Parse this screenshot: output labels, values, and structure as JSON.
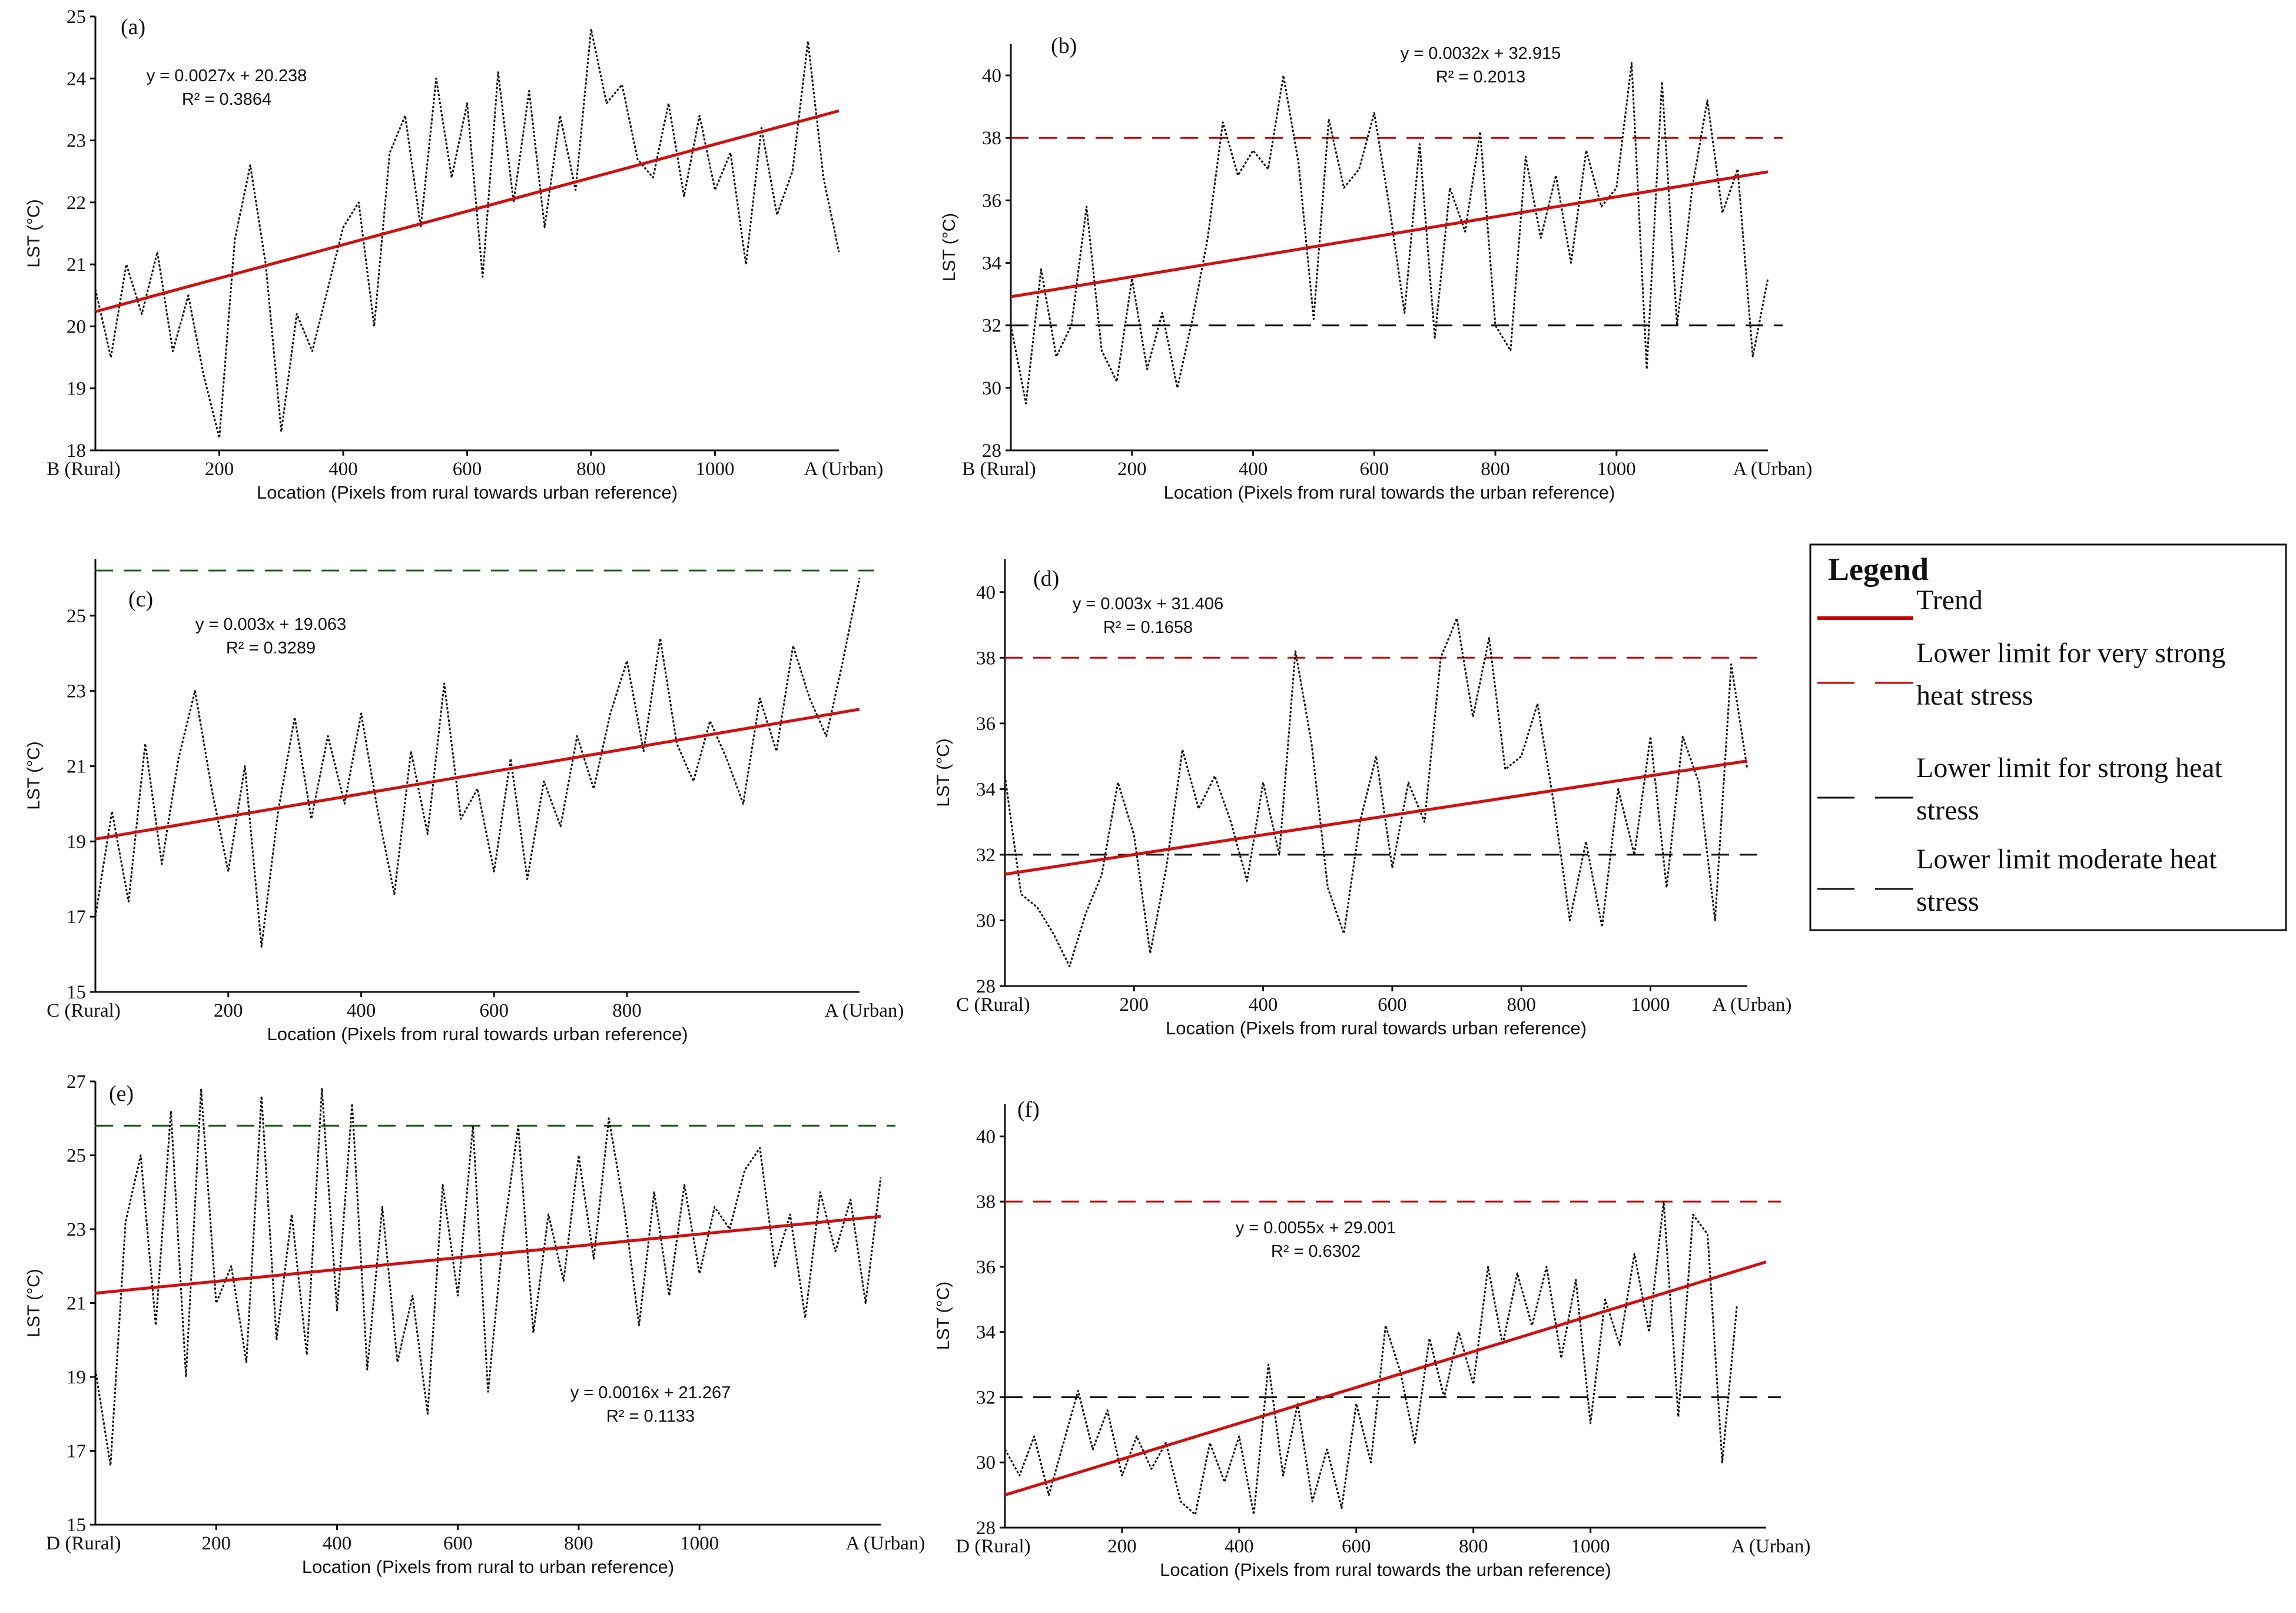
{
  "chart_data": [
    {
      "type": "line",
      "panel_label": "(a)",
      "ylabel": "LST (°C)",
      "xlabel": "Location (Pixels from rural towards urban reference)",
      "x_start_label": "B (Rural)",
      "x_end_label": "A (Urban)",
      "xlim": [
        0,
        1200
      ],
      "ylim": [
        18,
        25
      ],
      "yticks": [
        18,
        19,
        20,
        21,
        22,
        23,
        24,
        25
      ],
      "xticks": [
        200,
        400,
        600,
        800,
        1000
      ],
      "equation": "y = 0.0027x + 20.238",
      "r2": "R² = 0.3864",
      "trend": {
        "slope": 0.0027,
        "intercept": 20.238
      },
      "thresholds": [],
      "series": [
        {
          "name": "LST",
          "x": [
            0,
            25,
            50,
            75,
            100,
            125,
            150,
            175,
            200,
            225,
            250,
            275,
            300,
            325,
            350,
            375,
            400,
            425,
            450,
            475,
            500,
            525,
            550,
            575,
            600,
            625,
            650,
            675,
            700,
            725,
            750,
            775,
            800,
            825,
            850,
            875,
            900,
            925,
            950,
            975,
            1000,
            1025,
            1050,
            1075,
            1100,
            1125,
            1150,
            1175,
            1200
          ],
          "values": [
            20.6,
            19.5,
            21.0,
            20.2,
            21.2,
            19.6,
            20.5,
            19.2,
            18.2,
            21.4,
            22.6,
            21.0,
            18.3,
            20.2,
            19.6,
            20.6,
            21.6,
            22.0,
            20.0,
            22.8,
            23.4,
            21.6,
            24.0,
            22.4,
            23.6,
            20.8,
            24.1,
            22.0,
            23.8,
            21.6,
            23.4,
            22.2,
            24.8,
            23.6,
            23.9,
            22.7,
            22.4,
            23.6,
            22.1,
            23.4,
            22.2,
            22.8,
            21.0,
            23.2,
            21.8,
            22.5,
            24.6,
            22.4,
            21.2
          ]
        }
      ]
    },
    {
      "type": "line",
      "panel_label": "(b)",
      "ylabel": "LST (°C)",
      "xlabel": "Location (Pixels from rural  towards the urban reference)",
      "x_start_label": "B (Rural)",
      "x_end_label": "A (Urban)",
      "xlim": [
        0,
        1250
      ],
      "ylim": [
        28,
        41
      ],
      "yticks": [
        28,
        30,
        32,
        34,
        36,
        38,
        40
      ],
      "xticks": [
        200,
        400,
        600,
        800,
        1000
      ],
      "equation": "y = 0.0032x + 32.915",
      "r2": "R² = 0.2013",
      "trend": {
        "slope": 0.0032,
        "intercept": 32.915
      },
      "thresholds": [
        {
          "value": 38,
          "color": "#c00000",
          "kind": "very-strong"
        },
        {
          "value": 32,
          "color": "#111111",
          "kind": "strong"
        }
      ],
      "series": [
        {
          "name": "LST",
          "x": [
            0,
            25,
            50,
            75,
            100,
            125,
            150,
            175,
            200,
            225,
            250,
            275,
            300,
            325,
            350,
            375,
            400,
            425,
            450,
            475,
            500,
            525,
            550,
            575,
            600,
            625,
            650,
            675,
            700,
            725,
            750,
            775,
            800,
            825,
            850,
            875,
            900,
            925,
            950,
            975,
            1000,
            1025,
            1050,
            1075,
            1100,
            1125,
            1150,
            1175,
            1200,
            1225,
            1250
          ],
          "values": [
            32.0,
            29.5,
            33.8,
            31.0,
            32.0,
            35.8,
            31.2,
            30.2,
            33.5,
            30.6,
            32.4,
            30.0,
            32.2,
            34.8,
            38.5,
            36.8,
            37.6,
            37.0,
            40.0,
            37.2,
            32.2,
            38.6,
            36.4,
            37.0,
            38.8,
            35.8,
            32.4,
            37.8,
            31.6,
            36.4,
            35.0,
            38.2,
            32.0,
            31.2,
            37.4,
            34.8,
            36.8,
            34.0,
            37.6,
            35.8,
            36.4,
            40.4,
            30.6,
            39.8,
            32.0,
            36.4,
            39.2,
            35.6,
            37.0,
            31.0,
            33.5
          ]
        }
      ]
    },
    {
      "type": "line",
      "panel_label": "(c)",
      "ylabel": "LST (°C)",
      "xlabel": "Location (Pixels from rural towards urban reference)",
      "x_start_label": "C (Rural)",
      "x_end_label": "A (Urban)",
      "xlim": [
        0,
        1150
      ],
      "ylim": [
        15,
        26.5
      ],
      "yticks": [
        15,
        17,
        19,
        21,
        23,
        25
      ],
      "xticks": [
        200,
        400,
        600,
        800
      ],
      "equation": "y = 0.003x + 19.063",
      "r2": "R² = 0.3289",
      "trend": {
        "slope": 0.003,
        "intercept": 19.063
      },
      "thresholds": [
        {
          "value": 26.2,
          "color": "#1e5c1e",
          "kind": "moderate"
        }
      ],
      "series": [
        {
          "name": "LST",
          "x": [
            0,
            25,
            50,
            75,
            100,
            125,
            150,
            175,
            200,
            225,
            250,
            275,
            300,
            325,
            350,
            375,
            400,
            425,
            450,
            475,
            500,
            525,
            550,
            575,
            600,
            625,
            650,
            675,
            700,
            725,
            750,
            775,
            800,
            825,
            850,
            875,
            900,
            925,
            950,
            975,
            1000,
            1025,
            1050,
            1075,
            1100,
            1125,
            1150
          ],
          "values": [
            17.0,
            19.8,
            17.4,
            21.6,
            18.4,
            21.2,
            23.0,
            20.4,
            18.2,
            21.0,
            16.2,
            19.8,
            22.3,
            19.6,
            21.8,
            20.0,
            22.4,
            19.8,
            17.6,
            21.4,
            19.2,
            23.2,
            19.6,
            20.4,
            18.2,
            21.2,
            18.0,
            20.6,
            19.4,
            21.8,
            20.4,
            22.4,
            23.8,
            21.4,
            24.4,
            21.6,
            20.6,
            22.2,
            21.2,
            20.0,
            22.8,
            21.4,
            24.2,
            22.8,
            21.8,
            23.8,
            26.0
          ]
        }
      ]
    },
    {
      "type": "line",
      "panel_label": "(d)",
      "ylabel": "LST (°C)",
      "xlabel": "Location (Pixels from rural towards urban reference)",
      "x_start_label": "C (Rural)",
      "x_end_label": "A (Urban)",
      "xlim": [
        0,
        1150
      ],
      "ylim": [
        28,
        41
      ],
      "yticks": [
        28,
        30,
        32,
        34,
        36,
        38,
        40
      ],
      "xticks": [
        200,
        400,
        600,
        800,
        1000
      ],
      "equation": "y = 0.003x + 31.406",
      "r2": "R² = 0.1658",
      "trend": {
        "slope": 0.003,
        "intercept": 31.406
      },
      "thresholds": [
        {
          "value": 38,
          "color": "#c00000",
          "kind": "very-strong"
        },
        {
          "value": 32,
          "color": "#111111",
          "kind": "strong"
        }
      ],
      "series": [
        {
          "name": "LST",
          "x": [
            0,
            25,
            50,
            75,
            100,
            125,
            150,
            175,
            200,
            225,
            250,
            275,
            300,
            325,
            350,
            375,
            400,
            425,
            450,
            475,
            500,
            525,
            550,
            575,
            600,
            625,
            650,
            675,
            700,
            725,
            750,
            775,
            800,
            825,
            850,
            875,
            900,
            925,
            950,
            975,
            1000,
            1025,
            1050,
            1075,
            1100,
            1125,
            1150
          ],
          "values": [
            34.4,
            30.8,
            30.4,
            29.6,
            28.6,
            30.2,
            31.4,
            34.2,
            32.6,
            29.0,
            31.6,
            35.2,
            33.4,
            34.4,
            33.0,
            31.2,
            34.2,
            32.0,
            38.2,
            35.4,
            31.0,
            29.6,
            33.0,
            35.0,
            31.6,
            34.2,
            33.0,
            38.0,
            39.2,
            36.2,
            38.6,
            34.6,
            35.0,
            36.6,
            33.6,
            30.0,
            32.4,
            29.8,
            34.0,
            32.0,
            35.6,
            31.0,
            35.6,
            34.2,
            30.0,
            37.8,
            34.6
          ]
        }
      ]
    },
    {
      "type": "line",
      "panel_label": "(e)",
      "ylabel": "LST (°C)",
      "xlabel": "Location (Pixels from rural to urban reference)",
      "x_start_label": "D (Rural)",
      "x_end_label": "A (Urban)",
      "xlim": [
        0,
        1300
      ],
      "ylim": [
        15,
        27
      ],
      "yticks": [
        15,
        17,
        19,
        21,
        23,
        25,
        27
      ],
      "xticks": [
        200,
        400,
        600,
        800,
        1000
      ],
      "equation": "y = 0.0016x + 21.267",
      "r2": "R² = 0.1133",
      "trend": {
        "slope": 0.0016,
        "intercept": 21.267
      },
      "thresholds": [
        {
          "value": 25.8,
          "color": "#1e5c1e",
          "kind": "moderate"
        }
      ],
      "series": [
        {
          "name": "LST",
          "x": [
            0,
            25,
            50,
            75,
            100,
            125,
            150,
            175,
            200,
            225,
            250,
            275,
            300,
            325,
            350,
            375,
            400,
            425,
            450,
            475,
            500,
            525,
            550,
            575,
            600,
            625,
            650,
            675,
            700,
            725,
            750,
            775,
            800,
            825,
            850,
            875,
            900,
            925,
            950,
            975,
            1000,
            1025,
            1050,
            1075,
            1100,
            1125,
            1150,
            1175,
            1200,
            1225,
            1250,
            1275,
            1300
          ],
          "values": [
            19.2,
            16.6,
            23.2,
            25.0,
            20.4,
            26.2,
            19.0,
            26.8,
            21.0,
            22.0,
            19.4,
            26.6,
            20.0,
            23.4,
            19.6,
            26.8,
            20.8,
            26.4,
            19.2,
            23.6,
            19.4,
            21.2,
            18.0,
            24.2,
            21.2,
            25.8,
            18.6,
            22.8,
            25.8,
            20.2,
            23.4,
            21.6,
            25.0,
            22.2,
            26.0,
            23.6,
            20.4,
            24.0,
            21.2,
            24.2,
            21.8,
            23.6,
            23.0,
            24.6,
            25.2,
            22.0,
            23.4,
            20.6,
            24.0,
            22.4,
            23.8,
            21.0,
            24.4
          ]
        }
      ]
    },
    {
      "type": "line",
      "panel_label": "(f)",
      "ylabel": "LST (°C)",
      "xlabel": "Location (Pixels from rural towards the urban reference)",
      "x_start_label": "D (Rural)",
      "x_end_label": "A (Urban)",
      "xlim": [
        0,
        1300
      ],
      "ylim": [
        28,
        41
      ],
      "yticks": [
        28,
        30,
        32,
        34,
        36,
        38,
        40
      ],
      "xticks": [
        200,
        400,
        600,
        800,
        1000
      ],
      "equation": "y = 0.0055x + 29.001",
      "r2": "R² = 0.6302",
      "trend": {
        "slope": 0.0055,
        "intercept": 29.001
      },
      "thresholds": [
        {
          "value": 38,
          "color": "#c00000",
          "kind": "very-strong"
        },
        {
          "value": 32,
          "color": "#111111",
          "kind": "strong"
        }
      ],
      "series": [
        {
          "name": "LST",
          "x": [
            0,
            25,
            50,
            75,
            100,
            125,
            150,
            175,
            200,
            225,
            250,
            275,
            300,
            325,
            350,
            375,
            400,
            425,
            450,
            475,
            500,
            525,
            550,
            575,
            600,
            625,
            650,
            675,
            700,
            725,
            750,
            775,
            800,
            825,
            850,
            875,
            900,
            925,
            950,
            975,
            1000,
            1025,
            1050,
            1075,
            1100,
            1125,
            1150,
            1175,
            1200,
            1225,
            1250
          ],
          "values": [
            30.4,
            29.6,
            30.8,
            29.0,
            30.6,
            32.2,
            30.4,
            31.6,
            29.6,
            30.8,
            29.8,
            30.6,
            28.8,
            28.4,
            30.6,
            29.4,
            30.8,
            28.4,
            33.0,
            29.6,
            31.8,
            28.8,
            30.4,
            28.6,
            31.8,
            30.0,
            34.2,
            32.8,
            30.6,
            33.8,
            32.0,
            34.0,
            32.4,
            36.0,
            33.6,
            35.8,
            34.2,
            36.0,
            33.2,
            35.6,
            31.2,
            35.0,
            33.6,
            36.4,
            34.0,
            38.0,
            31.4,
            37.6,
            37.0,
            30.0,
            34.8
          ]
        }
      ]
    }
  ],
  "legend": {
    "title": "Legend",
    "items": [
      {
        "style": "trend",
        "color": "#c00000",
        "lines": [
          "Trend"
        ]
      },
      {
        "style": "dash",
        "color": "#c00000",
        "lines": [
          "Lower limit for very strong",
          "heat stress"
        ]
      },
      {
        "style": "dash",
        "color": "#111111",
        "lines": [
          "Lower limit for strong heat",
          "stress"
        ]
      },
      {
        "style": "dash",
        "color": "#111111",
        "lines": [
          "Lower limit moderate heat",
          "stress"
        ]
      }
    ]
  }
}
